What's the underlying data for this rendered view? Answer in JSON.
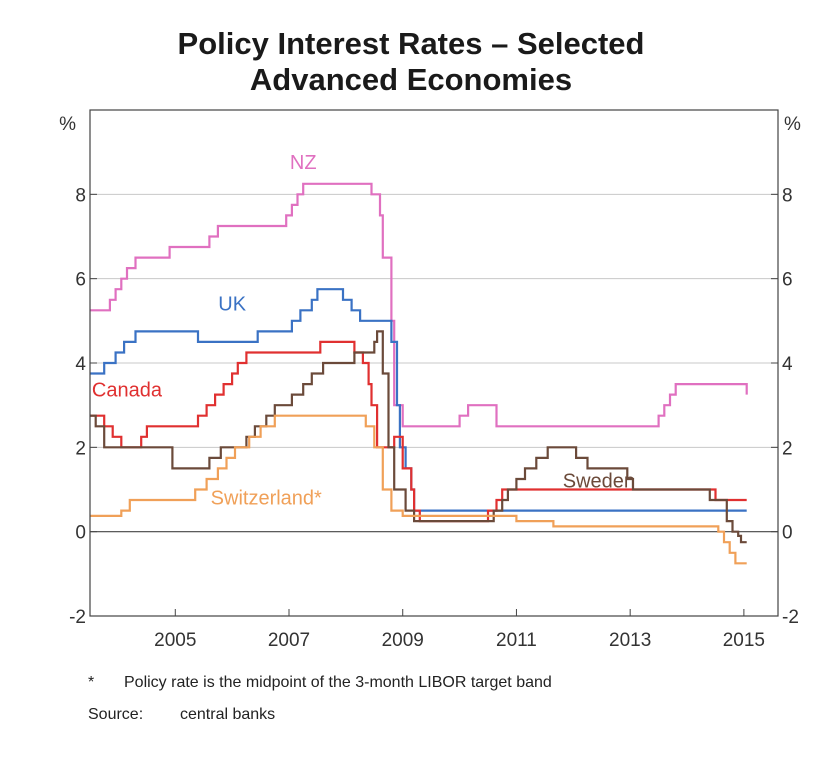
{
  "chart_data": {
    "type": "line",
    "title": "Policy Interest Rates – Selected Advanced Economies",
    "title_lines": [
      "Policy Interest Rates – Selected",
      "Advanced Economies"
    ],
    "y_unit_left": "%",
    "y_unit_right": "%",
    "ylim": [
      -2,
      10
    ],
    "xlim": [
      2003.5,
      2015.6
    ],
    "yticks": [
      -2,
      0,
      2,
      4,
      6,
      8
    ],
    "ytick_labels": [
      "-2",
      "0",
      "2",
      "4",
      "6",
      "8"
    ],
    "xticks": [
      2005,
      2007,
      2009,
      2011,
      2013,
      2015
    ],
    "xtick_labels": [
      "2005",
      "2007",
      "2009",
      "2011",
      "2013",
      "2015"
    ],
    "grid": "horizontal",
    "legend": "inline labels",
    "series": [
      {
        "name": "NZ",
        "label": "NZ",
        "color": "#e070c0",
        "label_pos": [
          2007.25,
          8.6
        ],
        "points": [
          [
            2003.5,
            5.25
          ],
          [
            2003.7,
            5.25
          ],
          [
            2003.85,
            5.5
          ],
          [
            2003.95,
            5.75
          ],
          [
            2004.05,
            6.0
          ],
          [
            2004.15,
            6.25
          ],
          [
            2004.3,
            6.5
          ],
          [
            2004.75,
            6.5
          ],
          [
            2004.9,
            6.75
          ],
          [
            2005.5,
            6.75
          ],
          [
            2005.6,
            7.0
          ],
          [
            2005.75,
            7.25
          ],
          [
            2006.9,
            7.25
          ],
          [
            2006.95,
            7.5
          ],
          [
            2007.05,
            7.75
          ],
          [
            2007.15,
            8.0
          ],
          [
            2007.25,
            8.25
          ],
          [
            2007.75,
            8.25
          ],
          [
            2007.85,
            8.25
          ],
          [
            2008.05,
            8.25
          ],
          [
            2008.3,
            8.25
          ],
          [
            2008.45,
            8.0
          ],
          [
            2008.6,
            7.5
          ],
          [
            2008.65,
            6.5
          ],
          [
            2008.8,
            5.0
          ],
          [
            2008.85,
            3.0
          ],
          [
            2009.0,
            2.5
          ],
          [
            2009.9,
            2.5
          ],
          [
            2010.0,
            2.75
          ],
          [
            2010.15,
            3.0
          ],
          [
            2010.55,
            3.0
          ],
          [
            2010.65,
            2.5
          ],
          [
            2013.4,
            2.5
          ],
          [
            2013.5,
            2.75
          ],
          [
            2013.6,
            3.0
          ],
          [
            2013.7,
            3.25
          ],
          [
            2013.8,
            3.5
          ],
          [
            2014.95,
            3.5
          ],
          [
            2015.05,
            3.25
          ]
        ]
      },
      {
        "name": "UK",
        "label": "UK",
        "color": "#3a72c4",
        "label_pos": [
          2006.0,
          5.25
        ],
        "points": [
          [
            2003.5,
            3.75
          ],
          [
            2003.65,
            3.75
          ],
          [
            2003.75,
            4.0
          ],
          [
            2003.95,
            4.25
          ],
          [
            2004.1,
            4.5
          ],
          [
            2004.3,
            4.75
          ],
          [
            2005.35,
            4.75
          ],
          [
            2005.4,
            4.5
          ],
          [
            2006.35,
            4.5
          ],
          [
            2006.45,
            4.75
          ],
          [
            2006.95,
            4.75
          ],
          [
            2007.05,
            5.0
          ],
          [
            2007.2,
            5.25
          ],
          [
            2007.4,
            5.5
          ],
          [
            2007.5,
            5.75
          ],
          [
            2007.9,
            5.75
          ],
          [
            2007.95,
            5.5
          ],
          [
            2008.1,
            5.25
          ],
          [
            2008.25,
            5.0
          ],
          [
            2008.75,
            5.0
          ],
          [
            2008.8,
            4.5
          ],
          [
            2008.9,
            3.0
          ],
          [
            2008.95,
            2.0
          ],
          [
            2009.05,
            1.5
          ],
          [
            2009.15,
            1.0
          ],
          [
            2009.2,
            0.5
          ],
          [
            2015.05,
            0.5
          ]
        ]
      },
      {
        "name": "Canada",
        "label": "Canada",
        "color": "#e03030",
        "label_pos": [
          2004.15,
          3.2
        ],
        "points": [
          [
            2003.5,
            2.75
          ],
          [
            2003.6,
            2.75
          ],
          [
            2003.75,
            2.5
          ],
          [
            2003.9,
            2.25
          ],
          [
            2004.05,
            2.0
          ],
          [
            2004.2,
            2.0
          ],
          [
            2004.3,
            2.0
          ],
          [
            2004.4,
            2.25
          ],
          [
            2004.5,
            2.5
          ],
          [
            2005.2,
            2.5
          ],
          [
            2005.4,
            2.75
          ],
          [
            2005.55,
            3.0
          ],
          [
            2005.7,
            3.25
          ],
          [
            2005.85,
            3.5
          ],
          [
            2006.0,
            3.75
          ],
          [
            2006.1,
            4.0
          ],
          [
            2006.25,
            4.25
          ],
          [
            2007.45,
            4.25
          ],
          [
            2007.55,
            4.5
          ],
          [
            2008.0,
            4.5
          ],
          [
            2008.15,
            4.25
          ],
          [
            2008.3,
            4.0
          ],
          [
            2008.4,
            3.5
          ],
          [
            2008.45,
            3.0
          ],
          [
            2008.55,
            2.0
          ],
          [
            2008.75,
            2.0
          ],
          [
            2008.85,
            2.25
          ],
          [
            2009.0,
            1.5
          ],
          [
            2009.15,
            1.0
          ],
          [
            2009.2,
            0.5
          ],
          [
            2009.3,
            0.25
          ],
          [
            2010.4,
            0.25
          ],
          [
            2010.5,
            0.5
          ],
          [
            2010.65,
            0.75
          ],
          [
            2010.75,
            1.0
          ],
          [
            2014.4,
            1.0
          ],
          [
            2014.5,
            0.75
          ],
          [
            2015.05,
            0.75
          ]
        ]
      },
      {
        "name": "Sweden",
        "label": "Sweden",
        "color": "#6b4a3a",
        "label_pos": [
          2012.45,
          1.05
        ],
        "points": [
          [
            2003.5,
            2.75
          ],
          [
            2003.6,
            2.5
          ],
          [
            2003.75,
            2.0
          ],
          [
            2004.9,
            2.0
          ],
          [
            2004.95,
            1.5
          ],
          [
            2005.5,
            1.5
          ],
          [
            2005.6,
            1.75
          ],
          [
            2005.8,
            2.0
          ],
          [
            2006.15,
            2.0
          ],
          [
            2006.25,
            2.25
          ],
          [
            2006.4,
            2.5
          ],
          [
            2006.6,
            2.75
          ],
          [
            2006.75,
            3.0
          ],
          [
            2007.05,
            3.25
          ],
          [
            2007.25,
            3.5
          ],
          [
            2007.4,
            3.75
          ],
          [
            2007.6,
            4.0
          ],
          [
            2008.05,
            4.0
          ],
          [
            2008.15,
            4.25
          ],
          [
            2008.5,
            4.5
          ],
          [
            2008.55,
            4.75
          ],
          [
            2008.65,
            3.75
          ],
          [
            2008.75,
            2.0
          ],
          [
            2008.85,
            1.0
          ],
          [
            2009.05,
            0.5
          ],
          [
            2009.2,
            0.25
          ],
          [
            2010.5,
            0.25
          ],
          [
            2010.6,
            0.5
          ],
          [
            2010.75,
            0.75
          ],
          [
            2010.85,
            1.0
          ],
          [
            2011.0,
            1.25
          ],
          [
            2011.15,
            1.5
          ],
          [
            2011.35,
            1.75
          ],
          [
            2011.55,
            2.0
          ],
          [
            2011.95,
            2.0
          ],
          [
            2012.05,
            1.75
          ],
          [
            2012.25,
            1.5
          ],
          [
            2012.85,
            1.5
          ],
          [
            2012.95,
            1.25
          ],
          [
            2013.05,
            1.0
          ],
          [
            2014.25,
            1.0
          ],
          [
            2014.4,
            0.75
          ],
          [
            2014.7,
            0.25
          ],
          [
            2014.8,
            0.0
          ],
          [
            2014.9,
            -0.1
          ],
          [
            2014.95,
            -0.25
          ],
          [
            2015.05,
            -0.25
          ]
        ]
      },
      {
        "name": "Switzerland*",
        "label": "Switzerland*",
        "color": "#f0a058",
        "label_pos": [
          2006.6,
          0.65
        ],
        "points": [
          [
            2003.5,
            0.375
          ],
          [
            2003.9,
            0.375
          ],
          [
            2004.05,
            0.5
          ],
          [
            2004.2,
            0.75
          ],
          [
            2005.3,
            0.75
          ],
          [
            2005.35,
            1.0
          ],
          [
            2005.55,
            1.25
          ],
          [
            2005.75,
            1.5
          ],
          [
            2005.9,
            1.75
          ],
          [
            2006.05,
            2.0
          ],
          [
            2006.3,
            2.25
          ],
          [
            2006.5,
            2.5
          ],
          [
            2006.75,
            2.75
          ],
          [
            2007.55,
            2.75
          ],
          [
            2007.65,
            2.75
          ],
          [
            2008.25,
            2.75
          ],
          [
            2008.35,
            2.5
          ],
          [
            2008.5,
            2.0
          ],
          [
            2008.65,
            1.0
          ],
          [
            2008.8,
            0.5
          ],
          [
            2009.0,
            0.375
          ],
          [
            2010.8,
            0.375
          ],
          [
            2011.0,
            0.25
          ],
          [
            2011.55,
            0.25
          ],
          [
            2011.65,
            0.125
          ],
          [
            2014.35,
            0.125
          ],
          [
            2014.55,
            0.0
          ],
          [
            2014.65,
            -0.25
          ],
          [
            2014.75,
            -0.5
          ],
          [
            2014.85,
            -0.75
          ],
          [
            2015.05,
            -0.75
          ]
        ]
      }
    ]
  },
  "footnote": {
    "marker": "*",
    "text": "Policy rate is the midpoint of the 3-month LIBOR target band"
  },
  "source": {
    "label": "Source:",
    "text": "central banks"
  }
}
